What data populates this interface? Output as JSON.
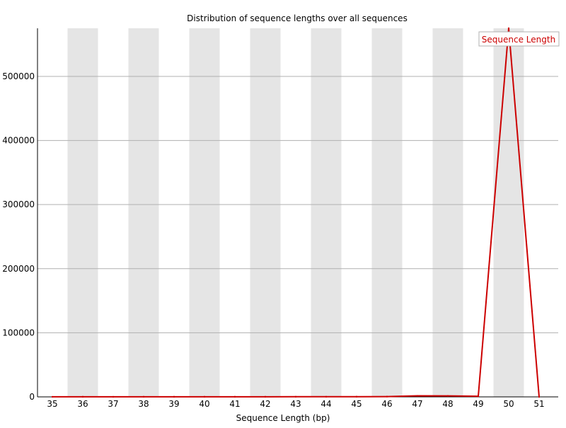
{
  "chart_data": {
    "type": "line",
    "title": "Distribution of sequence lengths over all sequences",
    "xlabel": "Sequence Length (bp)",
    "ylabel": "",
    "categories": [
      "35",
      "36",
      "37",
      "38",
      "39",
      "40",
      "41",
      "42",
      "43",
      "44",
      "45",
      "46",
      "47",
      "48",
      "49",
      "50",
      "51"
    ],
    "series": [
      {
        "name": "Sequence Length",
        "color": "#cc0000",
        "values": [
          100,
          150,
          120,
          160,
          150,
          180,
          170,
          200,
          210,
          250,
          300,
          450,
          1600,
          1500,
          1000,
          575000,
          0
        ]
      }
    ],
    "ylim": [
      0,
      575000
    ],
    "yticks": [
      0,
      100000,
      200000,
      300000,
      400000,
      500000
    ],
    "ytick_labels": [
      "0",
      "100000",
      "200000",
      "300000",
      "400000",
      "500000"
    ],
    "grid": "horizontal",
    "band_shading": "alternating grey on odd categories",
    "legend_position": "top-right"
  }
}
